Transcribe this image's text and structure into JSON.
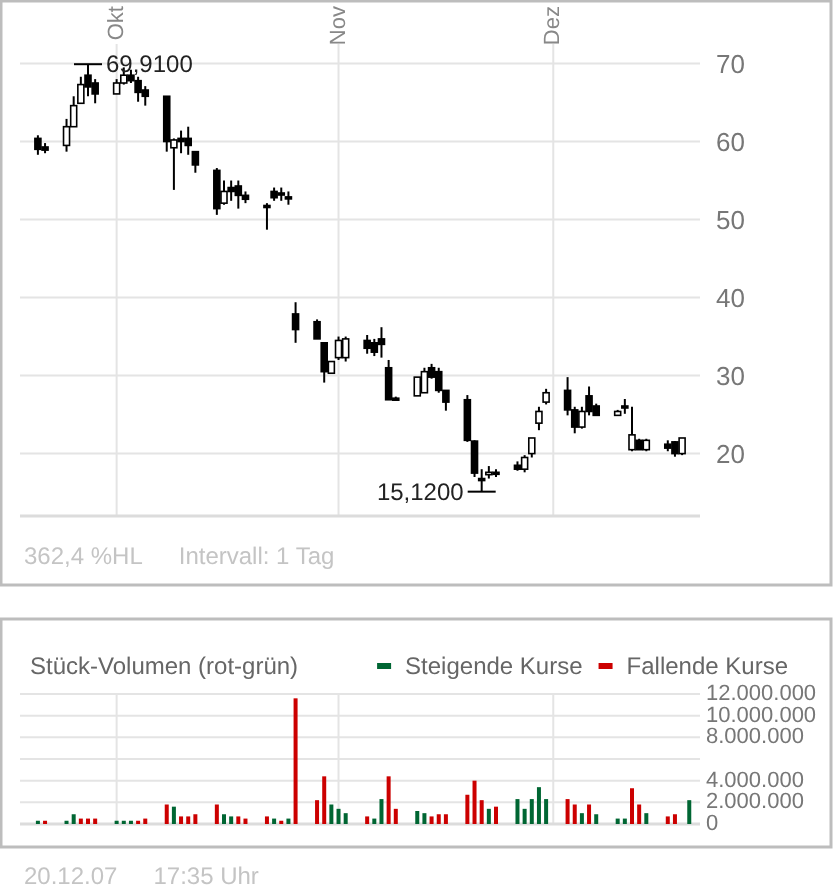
{
  "chart_data": [
    {
      "type": "candlestick",
      "categories": [
        null,
        null,
        null,
        null,
        null,
        null,
        null,
        null,
        null,
        null,
        null,
        null,
        null,
        "Okt",
        null,
        null,
        null,
        null,
        null,
        null,
        null,
        null,
        null,
        null,
        null,
        null,
        null,
        null,
        null,
        null,
        null,
        null,
        null,
        null,
        null,
        null,
        null,
        null,
        null,
        null,
        null,
        null,
        null,
        null,
        "Nov",
        null,
        null,
        null,
        null,
        null,
        null,
        null,
        null,
        null,
        null,
        null,
        null,
        null,
        null,
        null,
        null,
        null,
        null,
        null,
        null,
        null,
        null,
        null,
        null,
        null,
        null,
        null,
        null,
        null,
        "Dez",
        null,
        null,
        null,
        null,
        null,
        null,
        null,
        null,
        null,
        null,
        null,
        null,
        null,
        null,
        null,
        null,
        null,
        null,
        null,
        null
      ],
      "ohlc": [
        null,
        null,
        [
          60.4,
          60.8,
          58.3,
          59.0
        ],
        [
          59.3,
          59.8,
          58.5,
          58.9
        ],
        null,
        null,
        [
          59.5,
          62.9,
          58.7,
          61.9
        ],
        [
          61.9,
          65.8,
          61.9,
          64.6
        ],
        [
          64.9,
          68.3,
          64.9,
          67.3
        ],
        [
          68.5,
          69.91,
          65.8,
          67.0
        ],
        [
          67.5,
          68.0,
          64.9,
          66.1
        ],
        null,
        null,
        [
          66.1,
          68.0,
          66.1,
          67.5
        ],
        [
          67.5,
          69.5,
          67.3,
          68.5
        ],
        [
          68.5,
          69.2,
          67.5,
          67.8
        ],
        [
          67.8,
          68.3,
          65.1,
          66.3
        ],
        [
          66.6,
          67.1,
          64.6,
          65.8
        ],
        null,
        null,
        [
          65.8,
          65.8,
          58.7,
          60.0
        ],
        [
          59.2,
          60.4,
          53.8,
          60.2
        ],
        [
          60.4,
          61.4,
          58.5,
          60.0
        ],
        [
          60.4,
          61.9,
          58.3,
          59.5
        ],
        [
          58.7,
          58.7,
          56.0,
          57.0
        ],
        null,
        null,
        [
          56.3,
          56.6,
          50.6,
          51.4
        ],
        [
          52.1,
          55.0,
          51.9,
          53.6
        ],
        [
          54.1,
          55.0,
          52.4,
          53.6
        ],
        [
          54.3,
          55.0,
          51.4,
          53.1
        ],
        [
          53.1,
          53.6,
          52.1,
          52.6
        ],
        null,
        null,
        [
          51.8,
          52.1,
          48.7,
          51.6
        ],
        [
          53.6,
          54.1,
          52.4,
          52.8
        ],
        [
          53.4,
          54.1,
          52.4,
          53.2
        ],
        [
          52.9,
          53.6,
          51.9,
          52.8
        ],
        [
          37.9,
          39.4,
          34.2,
          35.9
        ],
        null,
        null,
        [
          36.9,
          37.2,
          34.7,
          34.7
        ],
        [
          34.2,
          34.2,
          29.1,
          30.5
        ],
        [
          30.3,
          31.8,
          30.3,
          31.8
        ],
        [
          32.3,
          35.0,
          32.0,
          34.5
        ],
        [
          32.3,
          35.0,
          31.8,
          34.7
        ],
        null,
        null,
        [
          34.5,
          35.2,
          32.8,
          33.5
        ],
        [
          34.2,
          34.7,
          32.5,
          33.0
        ],
        [
          34.7,
          36.2,
          32.3,
          34.0
        ],
        [
          31.0,
          32.0,
          26.9,
          26.9
        ],
        [
          27.1,
          27.3,
          26.9,
          26.9
        ],
        null,
        null,
        [
          27.4,
          29.8,
          27.4,
          29.8
        ],
        [
          27.8,
          31.0,
          27.8,
          30.5
        ],
        [
          31.0,
          31.5,
          29.6,
          29.8
        ],
        [
          30.5,
          31.0,
          27.8,
          28.1
        ],
        [
          28.1,
          28.1,
          25.5,
          26.6
        ],
        null,
        null,
        [
          26.9,
          27.5,
          21.5,
          21.7
        ],
        [
          21.6,
          21.7,
          17.0,
          17.5
        ],
        [
          16.8,
          18.0,
          15.12,
          16.6
        ],
        [
          17.3,
          18.4,
          16.8,
          17.6
        ],
        [
          17.6,
          18.0,
          17.0,
          17.4
        ],
        null,
        null,
        [
          18.5,
          19.0,
          17.8,
          18.0
        ],
        [
          18.0,
          19.8,
          17.6,
          19.5
        ],
        [
          20.0,
          22.0,
          19.5,
          22.0
        ],
        [
          23.9,
          26.0,
          23.0,
          25.4
        ],
        [
          26.6,
          28.3,
          26.3,
          27.8
        ],
        null,
        null,
        [
          28.1,
          29.8,
          24.9,
          25.6
        ],
        [
          25.6,
          26.0,
          22.6,
          23.4
        ],
        [
          23.4,
          26.0,
          23.2,
          25.4
        ],
        [
          27.4,
          28.6,
          24.9,
          25.4
        ],
        [
          26.1,
          26.4,
          24.9,
          24.9
        ],
        null,
        null,
        [
          24.9,
          25.6,
          24.9,
          25.4
        ],
        [
          26.1,
          27.0,
          25.1,
          25.9
        ],
        [
          20.5,
          26.0,
          20.3,
          22.4
        ],
        [
          21.7,
          21.9,
          20.5,
          20.5
        ],
        [
          20.5,
          21.9,
          20.3,
          21.7
        ],
        null,
        null,
        [
          21.2,
          21.7,
          20.3,
          20.7
        ],
        [
          21.5,
          21.6,
          19.6,
          20.0
        ],
        [
          20.0,
          22.0,
          19.8,
          22.0
        ],
        null,
        null
      ],
      "ylim": [
        12,
        72.5
      ],
      "yticks": [
        20,
        30,
        40,
        50,
        60,
        70
      ],
      "grid": true,
      "annotations": [
        "69,9100",
        "15,1200",
        "362,4 %HL",
        "Intervall: 1 Tag"
      ]
    },
    {
      "type": "bar",
      "title": "Stück-Volumen (rot-grün)",
      "categories": [
        null,
        null,
        null,
        null,
        null,
        null,
        null,
        null,
        null,
        null,
        null,
        null,
        null,
        null,
        null,
        null,
        null,
        null,
        null,
        null,
        null,
        null,
        null,
        null,
        null,
        null,
        null,
        null,
        null,
        null,
        null,
        null,
        null,
        null,
        null,
        null,
        null,
        null,
        null,
        null,
        null,
        null,
        null,
        null,
        null,
        null,
        null,
        null,
        null,
        null,
        null,
        null,
        null,
        null,
        null,
        null,
        null,
        null,
        null,
        null,
        null,
        null,
        null,
        null,
        null,
        null,
        null,
        null,
        null,
        null,
        null,
        null,
        null,
        null,
        null,
        null,
        null,
        null,
        null,
        null,
        null,
        null,
        null,
        null,
        null,
        null,
        null,
        null,
        null,
        null,
        null,
        null,
        null,
        null,
        null
      ],
      "series": [
        {
          "name": "Steigende Kurse",
          "color": "#006633",
          "values": [
            null,
            null,
            300000,
            null,
            null,
            null,
            300000,
            900000,
            null,
            null,
            null,
            null,
            null,
            300000,
            300000,
            300000,
            null,
            null,
            null,
            null,
            null,
            1600000,
            null,
            null,
            null,
            null,
            null,
            null,
            900000,
            700000,
            null,
            null,
            null,
            null,
            null,
            500000,
            null,
            500000,
            null,
            null,
            null,
            null,
            null,
            1800000,
            1400000,
            1000000,
            null,
            null,
            null,
            500000,
            2300000,
            null,
            null,
            null,
            null,
            1200000,
            1000000,
            null,
            null,
            null,
            null,
            null,
            null,
            null,
            null,
            1400000,
            null,
            null,
            null,
            2300000,
            1400000,
            2300000,
            3400000,
            2300000,
            null,
            null,
            null,
            null,
            1000000,
            null,
            900000,
            null,
            null,
            500000,
            500000,
            null,
            null,
            1000000,
            null,
            null,
            null,
            null,
            null,
            2200000,
            null
          ]
        },
        {
          "name": "Fallende Kurse",
          "color": "#cc0000",
          "values": [
            null,
            null,
            null,
            300000,
            null,
            null,
            null,
            null,
            500000,
            500000,
            500000,
            null,
            null,
            null,
            null,
            null,
            300000,
            500000,
            null,
            null,
            1800000,
            null,
            700000,
            700000,
            900000,
            null,
            null,
            1800000,
            null,
            null,
            700000,
            500000,
            null,
            null,
            700000,
            null,
            300000,
            null,
            11600000,
            null,
            null,
            2200000,
            4400000,
            null,
            null,
            null,
            null,
            null,
            700000,
            null,
            null,
            4400000,
            1400000,
            null,
            null,
            null,
            null,
            700000,
            900000,
            900000,
            null,
            null,
            2700000,
            4000000,
            2200000,
            null,
            1600000,
            null,
            null,
            null,
            null,
            null,
            null,
            null,
            null,
            null,
            2300000,
            1800000,
            null,
            1800000,
            null,
            null,
            null,
            null,
            null,
            3300000,
            1800000,
            null,
            null,
            null,
            700000,
            900000,
            null,
            null,
            null
          ]
        }
      ],
      "ylim": [
        0,
        12000000
      ],
      "yticks": [
        0,
        {
          "value": 2000000,
          "label": "2.000.000"
        },
        {
          "value": 4000000,
          "label": "4.000.000"
        },
        {
          "value": 6000000,
          "label": null
        },
        {
          "value": 8000000,
          "label": "8.000.000"
        },
        {
          "value": 10000000,
          "label": "10.000.000"
        },
        {
          "value": 12000000,
          "label": "12.000.000"
        }
      ],
      "tick_labels": "y",
      "grid": true,
      "legend": "top right",
      "annotations": [
        "20.12.07",
        "17:35 Uhr"
      ]
    }
  ]
}
